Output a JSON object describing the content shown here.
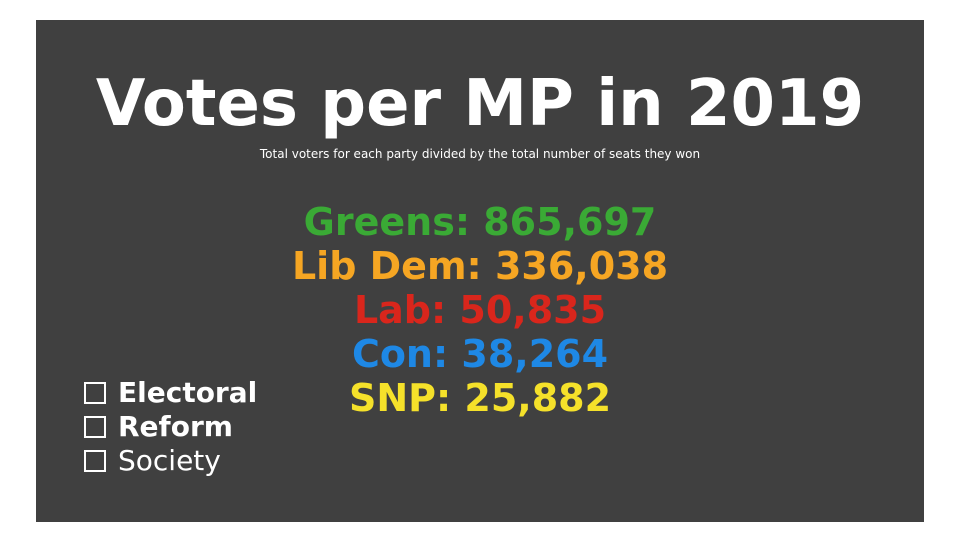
{
  "header": {
    "title": "Votes per MP in 2019",
    "subtitle": "Total voters for each party divided by the total number of seats they won"
  },
  "parties": [
    {
      "label": "Greens: 865,697",
      "color": "#3aaa35"
    },
    {
      "label": "Lib Dem: 336,038",
      "color": "#f6a623"
    },
    {
      "label": "Lab: 50,835",
      "color": "#d9261c"
    },
    {
      "label": "Con: 38,264",
      "color": "#1e88e5"
    },
    {
      "label": "SNP: 25,882",
      "color": "#f5e12a"
    }
  ],
  "logo": {
    "line1": "Electoral",
    "line2": "Reform",
    "line3": "Society",
    "icon": "checkbox-icon"
  },
  "colors": {
    "background": "#404040",
    "text": "#ffffff"
  }
}
